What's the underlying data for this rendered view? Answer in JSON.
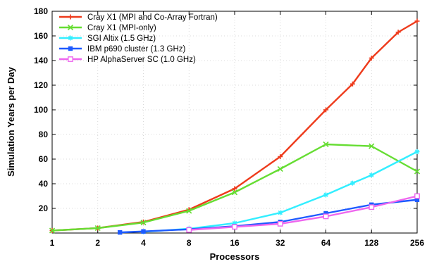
{
  "chart_data": {
    "type": "line",
    "x_scale": "log2",
    "x_ticks": [
      1,
      2,
      4,
      8,
      16,
      32,
      64,
      128,
      256
    ],
    "x_tick_labels": [
      "1",
      "2",
      "4",
      "8",
      "16",
      "32",
      "64",
      "128",
      "256"
    ],
    "xlabel": "Processors",
    "ylabel": "Simulation Years per Day",
    "ylim": [
      0,
      180
    ],
    "y_ticks": [
      20,
      40,
      60,
      80,
      100,
      120,
      140,
      160,
      180
    ],
    "y_tick_labels": [
      "20",
      "40",
      "60",
      "80",
      "100",
      "120",
      "140",
      "160",
      "180"
    ],
    "grid": true,
    "legend_position": "top-left",
    "series": [
      {
        "name": "Cray X1 (MPI and Co-Array Fortran)",
        "color": "#ee3b1c",
        "marker": "plus",
        "points": [
          [
            1,
            2
          ],
          [
            2,
            4
          ],
          [
            4,
            9
          ],
          [
            8,
            19
          ],
          [
            16,
            36
          ],
          [
            32,
            62
          ],
          [
            64,
            100
          ],
          [
            96,
            121
          ],
          [
            128,
            142
          ],
          [
            192,
            163
          ],
          [
            256,
            172
          ]
        ]
      },
      {
        "name": "Cray X1 (MPI-only)",
        "color": "#66dd33",
        "marker": "x",
        "points": [
          [
            1,
            2
          ],
          [
            2,
            4
          ],
          [
            4,
            8.5
          ],
          [
            8,
            18
          ],
          [
            16,
            33
          ],
          [
            32,
            52
          ],
          [
            64,
            72
          ],
          [
            128,
            70.5
          ],
          [
            256,
            50
          ]
        ]
      },
      {
        "name": "SGI Altix (1.5 GHz)",
        "color": "#33eeff",
        "marker": "star",
        "points": [
          [
            4,
            1
          ],
          [
            8,
            3.5
          ],
          [
            16,
            8
          ],
          [
            32,
            16.5
          ],
          [
            64,
            31
          ],
          [
            96,
            40.5
          ],
          [
            128,
            47
          ],
          [
            256,
            66
          ]
        ]
      },
      {
        "name": "IBM p690 cluster (1.3 GHz)",
        "color": "#1e5aff",
        "marker": "square",
        "points": [
          [
            2.8,
            0.5
          ],
          [
            4,
            1.3
          ],
          [
            8,
            3
          ],
          [
            16,
            5.5
          ],
          [
            32,
            9
          ],
          [
            64,
            16
          ],
          [
            128,
            23
          ],
          [
            256,
            27
          ]
        ]
      },
      {
        "name": "HP AlphaServer SC (1.0 GHz)",
        "color": "#ee66ee",
        "marker": "square-open",
        "points": [
          [
            8,
            2.5
          ],
          [
            16,
            5
          ],
          [
            32,
            7.5
          ],
          [
            64,
            13.5
          ],
          [
            128,
            21
          ],
          [
            256,
            30
          ]
        ]
      }
    ]
  }
}
